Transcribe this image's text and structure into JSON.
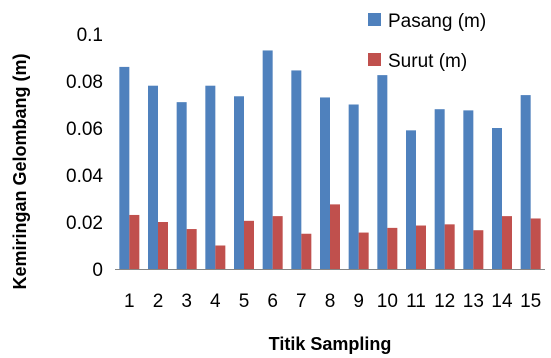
{
  "chart_data": {
    "type": "bar",
    "title": "",
    "xlabel": "Titik Sampling",
    "ylabel": "Kemiringan Gelombang (m)",
    "categories": [
      "1",
      "2",
      "3",
      "4",
      "5",
      "6",
      "7",
      "8",
      "9",
      "10",
      "11",
      "12",
      "13",
      "14",
      "15"
    ],
    "ylim": [
      0,
      0.1
    ],
    "yticks": [
      "0",
      "0.02",
      "0.04",
      "0.06",
      "0.08",
      "0.1"
    ],
    "grid": false,
    "legend_position": "top-right",
    "series": [
      {
        "name": "Pasang (m)",
        "color": "#4F81BD",
        "values": [
          0.086,
          0.078,
          0.071,
          0.078,
          0.0735,
          0.093,
          0.0845,
          0.073,
          0.07,
          0.0825,
          0.059,
          0.068,
          0.0675,
          0.06,
          0.074
        ]
      },
      {
        "name": "Surut (m)",
        "color": "#C0504D",
        "values": [
          0.023,
          0.02,
          0.017,
          0.01,
          0.0205,
          0.0225,
          0.015,
          0.0275,
          0.0155,
          0.0175,
          0.0185,
          0.019,
          0.0165,
          0.0225,
          0.0215
        ]
      }
    ]
  }
}
